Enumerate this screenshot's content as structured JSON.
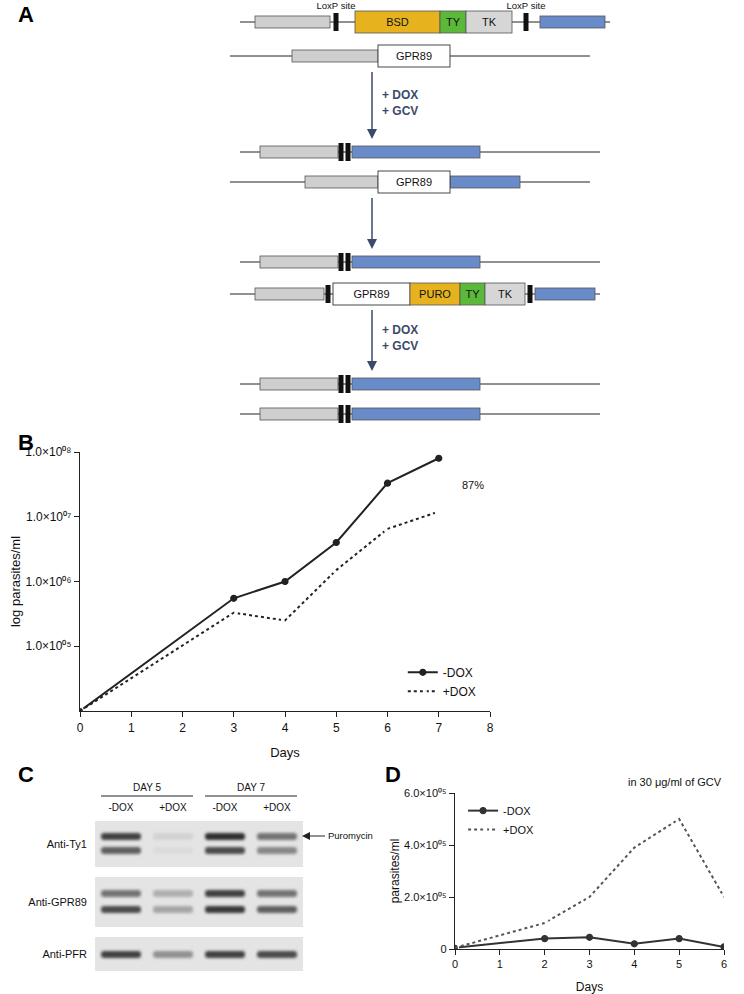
{
  "diagram": {
    "panel": "A",
    "loxp_label": "LoxP site",
    "cassette_1": [
      "BSD",
      "TY",
      "TK"
    ],
    "gene": "GPR89",
    "cassette_2": [
      "GPR89",
      "PURO",
      "TY",
      "TK"
    ],
    "treatment": [
      "+ DOX",
      "+ GCV"
    ]
  },
  "chart_data": [
    {
      "panel": "B",
      "type": "line",
      "log": "y",
      "grid": false,
      "legend": "lower right",
      "x_label": "Days",
      "y_label": "log parasites/ml",
      "x": [
        0,
        3,
        4,
        5,
        6,
        7
      ],
      "series": [
        {
          "name": "-DOX",
          "color": "#222222",
          "marker": "circle",
          "line_style": "solid",
          "values": [
            10000,
            550000,
            1000000,
            4000000,
            33000000,
            80000000
          ]
        },
        {
          "name": "+DOX",
          "color": "#222222",
          "marker": "circle-open",
          "line_style": "dot",
          "values": [
            10000,
            330000,
            250000,
            1500000,
            6500000,
            12000000
          ]
        }
      ],
      "annotation": "87%",
      "xlim": [
        0,
        8
      ],
      "xticks": [
        0,
        1,
        2,
        3,
        4,
        5,
        6,
        7,
        8
      ],
      "ylim": [
        10000,
        100000000
      ],
      "yticks": [
        {
          "value": 100000,
          "label": "1.0×10⁰⁵"
        },
        {
          "value": 1000000,
          "label": "1.0×10⁰⁶"
        },
        {
          "value": 10000000,
          "label": "1.0×10⁰⁷"
        },
        {
          "value": 100000000,
          "label": "1.0×10⁰⁸"
        }
      ]
    },
    {
      "panel": "D",
      "type": "line",
      "grid": false,
      "legend": "upper left",
      "x_label": "Days",
      "y_label": "parasites/ml",
      "x": [
        0,
        2,
        3,
        4,
        5,
        6
      ],
      "series": [
        {
          "name": "-DOX",
          "color": "#333333",
          "marker": "circle",
          "line_style": "solid",
          "values": [
            5000,
            40000,
            45000,
            20000,
            40000,
            8000
          ]
        },
        {
          "name": "+DOX",
          "color": "#555555",
          "marker": "circle-open",
          "line_style": "dot",
          "values": [
            5000,
            100000,
            200000,
            390000,
            500000,
            200000
          ]
        }
      ],
      "annotation": "in 30 μg/ml of GCV",
      "xlim": [
        0,
        6
      ],
      "xticks": [
        0,
        1,
        2,
        3,
        4,
        5,
        6
      ],
      "ylim": [
        0,
        600000
      ],
      "yticks": [
        0,
        {
          "value": 200000,
          "label": "2.0×10⁰⁵"
        },
        {
          "value": 400000,
          "label": "4.0×10⁰⁵"
        },
        {
          "value": 600000,
          "label": "6.0×10⁰⁵"
        }
      ]
    }
  ],
  "blot": {
    "panel": "C",
    "days": [
      "DAY 5",
      "DAY 7"
    ],
    "lanes": [
      "-DOX",
      "+DOX",
      "-DOX",
      "+DOX"
    ],
    "rows": [
      "Anti-Ty1",
      "Anti-GPR89",
      "Anti-PFR"
    ],
    "arrow_label": "Puromycin"
  }
}
